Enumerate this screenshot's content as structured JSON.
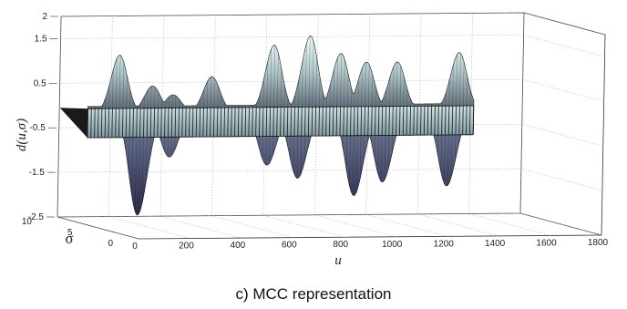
{
  "chart_data": {
    "type": "surface",
    "caption": "c) MCC representation",
    "xlabel": "u",
    "ylabel": "σ",
    "zlabel": "d(u,σ)",
    "xlim": [
      0,
      1800
    ],
    "ylim": [
      0,
      10
    ],
    "zlim": [
      -2.5,
      2
    ],
    "xticks": [
      "0",
      "200",
      "400",
      "600",
      "800",
      "1000",
      "1200",
      "1400",
      "1600",
      "1800"
    ],
    "yticks": [
      "0",
      "5",
      "10"
    ],
    "zticks": [
      "2",
      "1.5",
      "0.5",
      "-0.5",
      "-1.5",
      "-2.5"
    ],
    "grid": true,
    "colormap": "bone",
    "upper_peaks": [
      {
        "u": 120,
        "d": 1.3
      },
      {
        "u": 250,
        "d": 0.6
      },
      {
        "u": 330,
        "d": 0.4
      },
      {
        "u": 480,
        "d": 0.8
      },
      {
        "u": 720,
        "d": 1.5
      },
      {
        "u": 860,
        "d": 1.7
      },
      {
        "u": 980,
        "d": 1.3
      },
      {
        "u": 1080,
        "d": 1.1
      },
      {
        "u": 1200,
        "d": 1.1
      },
      {
        "u": 1440,
        "d": 1.3
      }
    ],
    "lower_troughs": [
      {
        "u": 200,
        "d": -2.3
      },
      {
        "u": 320,
        "d": -1.0
      },
      {
        "u": 700,
        "d": -1.2
      },
      {
        "u": 820,
        "d": -1.5
      },
      {
        "u": 1040,
        "d": -1.9
      },
      {
        "u": 1150,
        "d": -1.6
      },
      {
        "u": 1400,
        "d": -1.7
      }
    ],
    "band_range": [
      0,
      1500
    ]
  }
}
